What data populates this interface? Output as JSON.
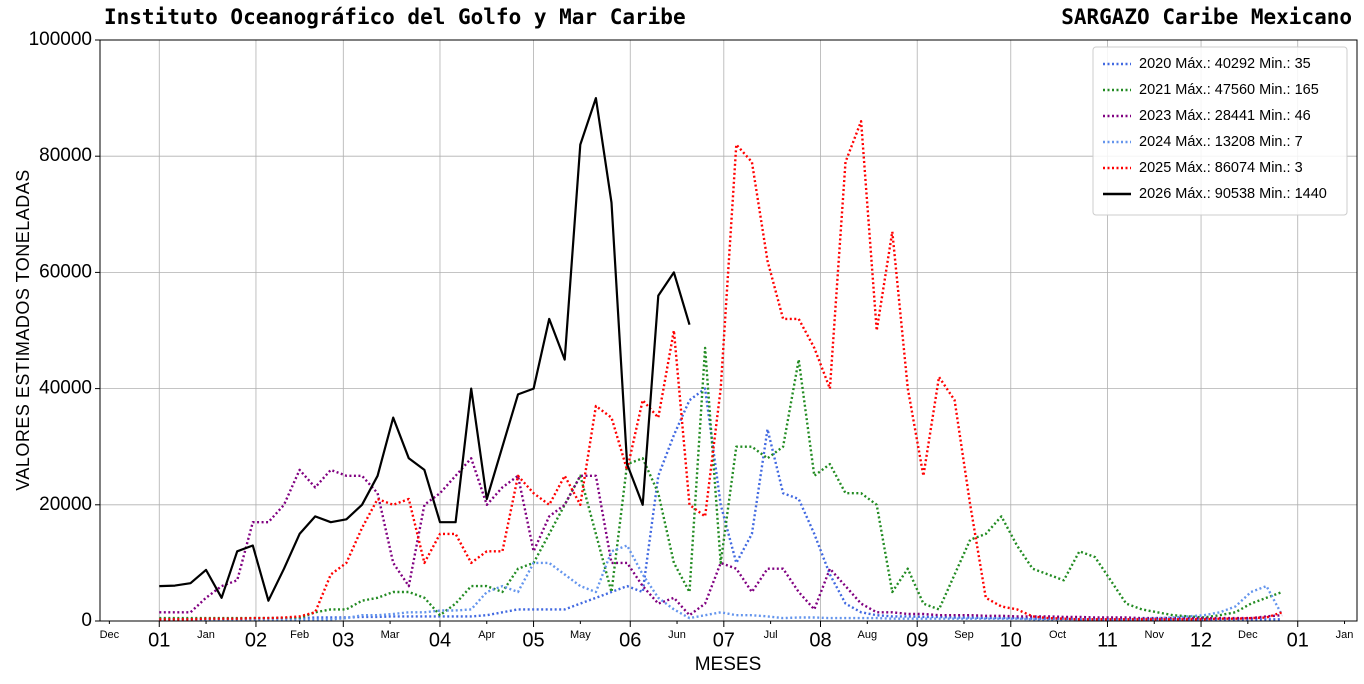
{
  "chart_data": {
    "type": "line",
    "title": "Instituto Oceanográfico del Golfo y Mar Caribe",
    "subtitle": "SARGAZO Caribe Mexicano",
    "x_label": "MESES",
    "y_label": "VALORES ESTIMADOS TONELADAS",
    "grid": true,
    "legend": "upper right",
    "xlim": [
      -19,
      384
    ],
    "ylim": [
      0,
      100000
    ],
    "yticks": [
      0,
      20000,
      40000,
      60000,
      80000,
      100000
    ],
    "xticks": [
      {
        "value": 0,
        "label": "01"
      },
      {
        "value": 31,
        "label": "02"
      },
      {
        "value": 59,
        "label": "03"
      },
      {
        "value": 90,
        "label": "04"
      },
      {
        "value": 120,
        "label": "05"
      },
      {
        "value": 151,
        "label": "06"
      },
      {
        "value": 181,
        "label": "07"
      },
      {
        "value": 212,
        "label": "08"
      },
      {
        "value": 243,
        "label": "09"
      },
      {
        "value": 273,
        "label": "10"
      },
      {
        "value": 304,
        "label": "11"
      },
      {
        "value": 334,
        "label": "12"
      },
      {
        "value": 365,
        "label": "01"
      }
    ],
    "xminorticks": [
      {
        "value": -16,
        "label": "Dec"
      },
      {
        "value": 15,
        "label": "Jan"
      },
      {
        "value": 45,
        "label": "Feb"
      },
      {
        "value": 74,
        "label": "Mar"
      },
      {
        "value": 105,
        "label": "Apr"
      },
      {
        "value": 135,
        "label": "May"
      },
      {
        "value": 166,
        "label": "Jun"
      },
      {
        "value": 196,
        "label": "Jul"
      },
      {
        "value": 227,
        "label": "Aug"
      },
      {
        "value": 258,
        "label": "Sep"
      },
      {
        "value": 288,
        "label": "Oct"
      },
      {
        "value": 319,
        "label": "Nov"
      },
      {
        "value": 349,
        "label": "Dec"
      },
      {
        "value": 380,
        "label": "Jan"
      }
    ],
    "x": [
      0,
      5,
      10,
      15,
      20,
      25,
      30,
      35,
      40,
      45,
      50,
      55,
      60,
      65,
      70,
      75,
      80,
      85,
      90,
      95,
      100,
      105,
      110,
      115,
      120,
      125,
      130,
      135,
      140,
      145,
      150,
      155,
      160,
      165,
      170,
      175,
      180,
      185,
      190,
      195,
      200,
      205,
      210,
      215,
      220,
      225,
      230,
      235,
      240,
      245,
      250,
      255,
      260,
      265,
      270,
      275,
      280,
      285,
      290,
      295,
      300,
      305,
      310,
      315,
      320,
      325,
      330,
      335,
      340,
      345,
      350,
      355,
      360
    ],
    "series": [
      {
        "name": "2020 Máx.: 40292  Min.: 35",
        "color": "#4169e1",
        "linestyle": "dotted",
        "values": [
          300,
          300,
          300,
          300,
          400,
          400,
          400,
          500,
          500,
          500,
          600,
          600,
          600,
          700,
          700,
          800,
          800,
          800,
          800,
          800,
          800,
          1000,
          1500,
          2000,
          2000,
          2000,
          2000,
          3000,
          4000,
          5000,
          6000,
          5000,
          25000,
          32000,
          38000,
          40000,
          20000,
          10000,
          15000,
          33000,
          22000,
          21000,
          15000,
          8000,
          3000,
          1500,
          1000,
          800,
          800,
          700,
          700,
          600,
          600,
          500,
          500,
          500,
          400,
          400,
          400,
          300,
          300,
          300,
          300,
          300,
          300,
          300,
          300,
          300,
          300,
          300,
          300,
          300,
          300
        ]
      },
      {
        "name": "2021 Máx.: 47560  Min.: 165",
        "color": "#228b22",
        "linestyle": "dotted",
        "values": [
          500,
          500,
          500,
          500,
          500,
          500,
          500,
          500,
          500,
          500,
          1500,
          2000,
          2000,
          3500,
          4000,
          5000,
          5000,
          4000,
          1000,
          3000,
          6000,
          6000,
          5000,
          9000,
          10000,
          15000,
          20000,
          25000,
          15000,
          5000,
          27000,
          28000,
          22000,
          10000,
          5000,
          47000,
          10000,
          30000,
          30000,
          28000,
          30000,
          45000,
          25000,
          27000,
          22000,
          22000,
          20000,
          5000,
          9000,
          3000,
          2000,
          8000,
          14000,
          15000,
          18000,
          13000,
          9000,
          8000,
          7000,
          12000,
          11000,
          7000,
          3000,
          2000,
          1500,
          1000,
          800,
          600,
          1000,
          1500,
          3000,
          4000,
          5000
        ]
      },
      {
        "name": "2023 Máx.: 28441  Min.: 46",
        "color": "#800080",
        "linestyle": "dotted",
        "values": [
          1500,
          1500,
          1500,
          4000,
          6000,
          7000,
          17000,
          17000,
          20000,
          26000,
          23000,
          26000,
          25000,
          25000,
          22000,
          10000,
          6000,
          20000,
          22000,
          25000,
          28000,
          20000,
          23000,
          25000,
          12000,
          18000,
          20000,
          25000,
          25000,
          10000,
          10000,
          6000,
          3000,
          4000,
          1000,
          3000,
          10000,
          9000,
          5000,
          9000,
          9000,
          5000,
          2000,
          9000,
          6000,
          3000,
          1500,
          1500,
          1200,
          1200,
          1000,
          1000,
          1000,
          900,
          900,
          800,
          800,
          800,
          700,
          700,
          600,
          600,
          600,
          500,
          500,
          500,
          500,
          500,
          500,
          500,
          500,
          800,
          1000
        ]
      },
      {
        "name": "2024 Máx.: 13208  Min.: 7",
        "color": "#6495ed",
        "linestyle": "dotted",
        "values": [
          200,
          200,
          200,
          200,
          200,
          200,
          200,
          200,
          200,
          200,
          200,
          300,
          500,
          1000,
          1000,
          1200,
          1500,
          1500,
          1800,
          1800,
          2000,
          5000,
          6000,
          5000,
          10000,
          10000,
          8000,
          6000,
          5000,
          12000,
          13000,
          8000,
          4000,
          2000,
          500,
          1000,
          1500,
          1000,
          1000,
          800,
          500,
          600,
          600,
          500,
          500,
          500,
          500,
          400,
          400,
          400,
          400,
          400,
          400,
          400,
          400,
          400,
          300,
          300,
          300,
          300,
          300,
          300,
          300,
          400,
          500,
          600,
          800,
          1000,
          1500,
          2500,
          5000,
          6000,
          1000
        ]
      },
      {
        "name": "2025 Máx.: 86074  Min.: 3",
        "color": "#ff0000",
        "linestyle": "dotted",
        "values": [
          300,
          300,
          300,
          400,
          400,
          400,
          500,
          500,
          600,
          800,
          1500,
          8000,
          10000,
          16000,
          21000,
          20000,
          21000,
          10000,
          15000,
          15000,
          10000,
          12000,
          12000,
          25000,
          22000,
          20000,
          25000,
          20000,
          37000,
          35000,
          26000,
          38000,
          35000,
          50000,
          20000,
          18000,
          40000,
          82000,
          79000,
          62000,
          52000,
          52000,
          47000,
          40000,
          79000,
          86000,
          50000,
          67000,
          40000,
          25000,
          42000,
          38000,
          20000,
          4000,
          2500,
          2000,
          800,
          500,
          400,
          300,
          300,
          300,
          300,
          300,
          300,
          300,
          300,
          300,
          400,
          400,
          500,
          600,
          1500
        ]
      },
      {
        "name": "2026 Máx.: 90538  Min.: 1440",
        "color": "#000000",
        "linestyle": "solid",
        "values": [
          6000,
          6100,
          6500,
          8800,
          4000,
          12000,
          13000,
          3500,
          9000,
          15000,
          18000,
          17000,
          17500,
          20000,
          25000,
          35000,
          28000,
          26000,
          17000,
          17000,
          40000,
          21000,
          30000,
          39000,
          40000,
          52000,
          45000,
          82000,
          90000,
          72000,
          27000,
          20000,
          56000,
          60000,
          51000,
          null,
          null,
          null,
          null,
          null,
          null,
          null,
          null,
          null,
          null,
          null,
          null,
          null,
          null,
          null,
          null,
          null,
          null,
          null,
          null,
          null,
          null,
          null,
          null,
          null,
          null,
          null,
          null,
          null,
          null,
          null,
          null,
          null,
          null,
          null,
          null,
          null,
          null
        ]
      }
    ]
  }
}
